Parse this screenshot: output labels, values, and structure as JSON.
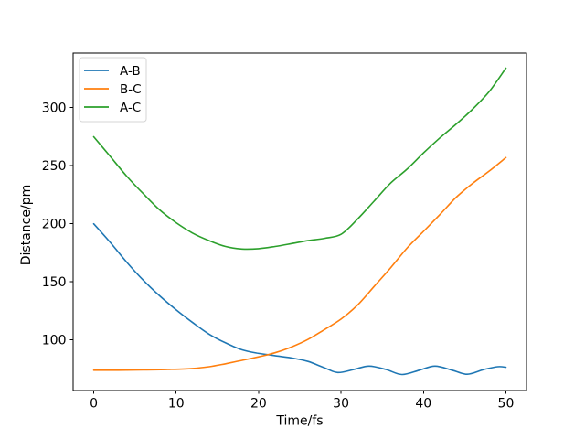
{
  "figure": {
    "background": "#ffffff"
  },
  "chart_data": {
    "type": "line",
    "title": "",
    "xlabel": "Time/fs",
    "ylabel": "Distance/pm",
    "xlim": [
      -2.5,
      52.5
    ],
    "ylim": [
      56.5,
      347
    ],
    "xticks": [
      0,
      10,
      20,
      30,
      40,
      50
    ],
    "yticks": [
      100,
      150,
      200,
      250,
      300
    ],
    "grid": false,
    "axes_color": "#000000",
    "legend": {
      "position": "upper-left",
      "border_color": "#d5d5d5",
      "background": "#ffffff",
      "entries": [
        "A-B",
        "B-C",
        "A-C"
      ]
    },
    "series": [
      {
        "name": "A-B",
        "color": "#1f77b4",
        "points": [
          [
            0,
            200
          ],
          [
            2,
            184
          ],
          [
            4,
            167
          ],
          [
            6,
            151.5
          ],
          [
            8,
            138
          ],
          [
            10,
            126
          ],
          [
            12,
            115
          ],
          [
            14,
            105
          ],
          [
            16,
            97.5
          ],
          [
            18,
            91.5
          ],
          [
            20,
            88.5
          ],
          [
            22,
            86.5
          ],
          [
            24,
            84.5
          ],
          [
            26,
            81.5
          ],
          [
            28,
            76
          ],
          [
            29.6,
            72
          ],
          [
            31.5,
            74.5
          ],
          [
            33.4,
            77.5
          ],
          [
            35.5,
            74.5
          ],
          [
            37.4,
            70.3
          ],
          [
            39.5,
            74
          ],
          [
            41.4,
            77.5
          ],
          [
            43.5,
            74
          ],
          [
            45.3,
            70.5
          ],
          [
            47.3,
            74.5
          ],
          [
            49,
            77
          ],
          [
            50,
            76.5
          ]
        ]
      },
      {
        "name": "B-C",
        "color": "#ff7f0e",
        "points": [
          [
            0,
            74
          ],
          [
            3,
            74
          ],
          [
            6,
            74.2
          ],
          [
            9,
            74.6
          ],
          [
            12,
            75.5
          ],
          [
            14,
            77
          ],
          [
            16,
            79.5
          ],
          [
            18,
            82.5
          ],
          [
            20,
            85.5
          ],
          [
            22,
            89
          ],
          [
            24,
            94
          ],
          [
            26,
            100.5
          ],
          [
            28,
            109
          ],
          [
            30,
            118
          ],
          [
            32,
            130
          ],
          [
            34,
            146
          ],
          [
            36,
            162
          ],
          [
            38,
            179
          ],
          [
            40,
            193.5
          ],
          [
            42,
            208
          ],
          [
            44,
            223
          ],
          [
            46,
            235
          ],
          [
            48,
            245.5
          ],
          [
            50,
            257
          ]
        ]
      },
      {
        "name": "A-C",
        "color": "#2ca02c",
        "points": [
          [
            0,
            275
          ],
          [
            2,
            258
          ],
          [
            4,
            241
          ],
          [
            6,
            226
          ],
          [
            8,
            212
          ],
          [
            10,
            201
          ],
          [
            12,
            192
          ],
          [
            14,
            185.5
          ],
          [
            16,
            180.5
          ],
          [
            18,
            178.3
          ],
          [
            20,
            178.6
          ],
          [
            22,
            180.5
          ],
          [
            24,
            183
          ],
          [
            26,
            185.5
          ],
          [
            28,
            187.5
          ],
          [
            30,
            191
          ],
          [
            32,
            204
          ],
          [
            34,
            219.5
          ],
          [
            36,
            235
          ],
          [
            38,
            247
          ],
          [
            40,
            261
          ],
          [
            42,
            274
          ],
          [
            44,
            286
          ],
          [
            46,
            299
          ],
          [
            48,
            314
          ],
          [
            50,
            334
          ]
        ]
      }
    ]
  }
}
